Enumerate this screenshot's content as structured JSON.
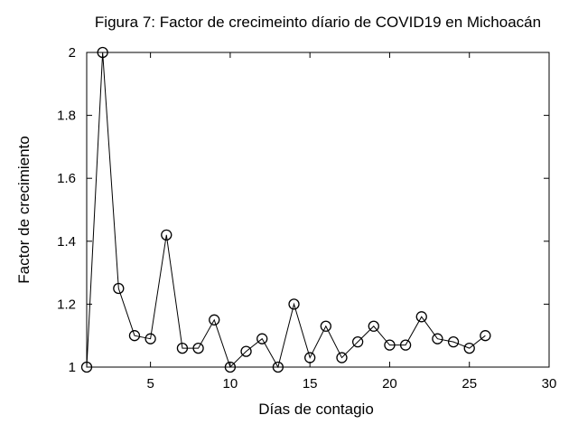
{
  "chart_data": {
    "type": "line",
    "title": "Figura 7: Factor de crecimeinto díario de COVID19 en Michoacán",
    "xlabel": "Días de contagio",
    "ylabel": "Factor de crecimiento",
    "xlim": [
      1,
      30
    ],
    "ylim": [
      1,
      2
    ],
    "xticks": [
      5,
      10,
      15,
      20,
      25,
      30
    ],
    "yticks": [
      1,
      1.2,
      1.4,
      1.6,
      1.8,
      2
    ],
    "ytick_labels": [
      "1",
      "1.2",
      "1.4",
      "1.6",
      "1.8",
      "2"
    ],
    "grid": false,
    "series": [
      {
        "x": [
          1,
          2,
          3,
          4,
          5,
          6,
          7,
          8,
          9,
          10,
          11,
          12,
          13,
          14,
          15,
          16,
          17,
          18,
          19,
          20,
          21,
          22,
          23,
          24,
          25,
          26
        ],
        "values": [
          1.0,
          2.0,
          1.25,
          1.1,
          1.09,
          1.42,
          1.06,
          1.06,
          1.15,
          1.0,
          1.05,
          1.09,
          1.0,
          1.2,
          1.03,
          1.13,
          1.03,
          1.08,
          1.13,
          1.07,
          1.07,
          1.16,
          1.09,
          1.08,
          1.06,
          1.1
        ],
        "color": "#000000",
        "marker": "open-circle"
      }
    ]
  }
}
